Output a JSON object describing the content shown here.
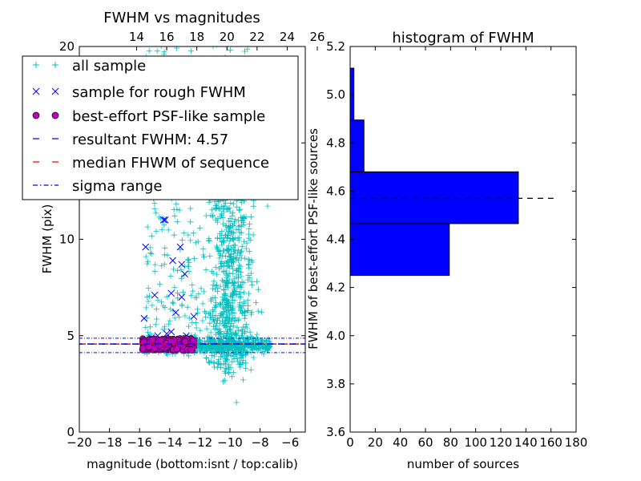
{
  "chart_data": [
    {
      "type": "scatter",
      "title": "FWHM vs magnitudes",
      "xlabel": "magnitude (bottom:isnt / top:calib)",
      "ylabel": "FWHM (pix)",
      "xlim": [
        -20,
        -5
      ],
      "ylim": [
        0,
        20
      ],
      "xticks": [
        -20,
        -18,
        -16,
        -14,
        -12,
        -10,
        -8,
        -6
      ],
      "yticks": [
        0,
        5,
        10,
        15,
        20
      ],
      "top_axis": {
        "ticks": [
          14,
          16,
          18,
          20,
          22,
          24,
          26
        ],
        "offset": 30.2
      },
      "colors": {
        "all": "#00bfbf",
        "rough": "#0000ff",
        "best": "#bf00bf",
        "resultant": "#0000ff",
        "median": "#ff0000",
        "sigma": "#0000ff"
      },
      "resultant_fwhm": 4.57,
      "median_fwhm": 4.57,
      "sigma_range": [
        4.12,
        4.87
      ],
      "legend": {
        "placement": "upper-left",
        "entries": [
          {
            "label": "all sample",
            "marker": "plus"
          },
          {
            "label": "sample for rough FWHM",
            "marker": "x"
          },
          {
            "label": "best-effort PSF-like sample",
            "marker": "circle"
          },
          {
            "label": "resultant FWHM: 4.57",
            "marker": "dashed-blue"
          },
          {
            "label": "median FHWM of sequence",
            "marker": "dashed-red"
          },
          {
            "label": "sigma range",
            "marker": "dashdot-blue"
          }
        ]
      },
      "series": [
        {
          "name": "sample for rough FWHM",
          "points": [
            [
              -15.6,
              9.6
            ],
            [
              -15.7,
              5.9
            ],
            [
              -15.0,
              7.1
            ],
            [
              -14.4,
              11.0
            ],
            [
              -14.3,
              11.0
            ],
            [
              -13.8,
              8.9
            ],
            [
              -13.9,
              7.2
            ],
            [
              -13.3,
              9.6
            ],
            [
              -13.2,
              8.7
            ],
            [
              -13.0,
              8.2
            ],
            [
              -13.6,
              6.2
            ],
            [
              -13.2,
              7.0
            ],
            [
              -14.2,
              5.1
            ],
            [
              -13.9,
              5.2
            ],
            [
              -12.9,
              5.0
            ],
            [
              -15.2,
              4.9
            ],
            [
              -14.8,
              5.0
            ],
            [
              -12.4,
              6.0
            ]
          ]
        },
        {
          "name": "best-effort PSF-like sample",
          "x_range": [
            -15.8,
            -12.4
          ],
          "y_range": [
            4.25,
            4.85
          ],
          "count": 230
        },
        {
          "name": "all sample",
          "n_points": 1600
        }
      ]
    },
    {
      "type": "histogram",
      "orientation": "horizontal",
      "title": "histogram of FWHM",
      "xlabel": "number of sources",
      "ylabel": "FWHM of best-effort PSF-like sources",
      "xlim": [
        0,
        180
      ],
      "ylim": [
        3.6,
        5.2
      ],
      "xticks": [
        0,
        20,
        40,
        60,
        80,
        100,
        120,
        140,
        160,
        180
      ],
      "yticks": [
        3.6,
        3.8,
        4.0,
        4.2,
        4.4,
        4.6,
        4.8,
        5.0,
        5.2
      ],
      "bin_color": "#0000ff",
      "bins": [
        {
          "low": 4.25,
          "high": 4.465,
          "count": 79
        },
        {
          "low": 4.465,
          "high": 4.68,
          "count": 134
        },
        {
          "low": 4.68,
          "high": 4.895,
          "count": 11
        },
        {
          "low": 4.895,
          "high": 5.11,
          "count": 3
        }
      ],
      "reference_line": 4.57
    }
  ]
}
